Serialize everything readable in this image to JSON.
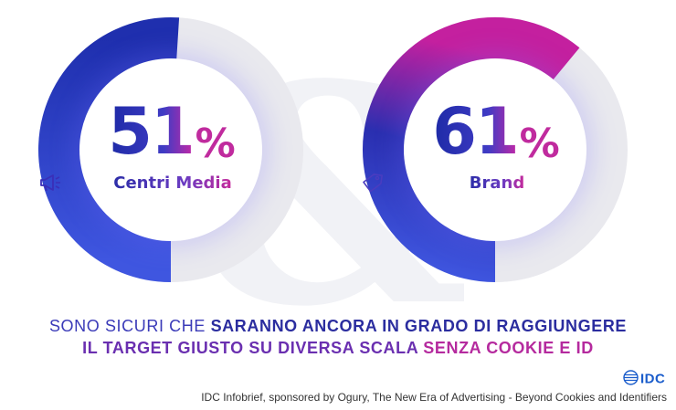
{
  "chart_data": [
    {
      "type": "pie",
      "value": 51,
      "value_label": "51",
      "unit": "%",
      "label": "Centri Media",
      "icon": "megaphone-icon"
    },
    {
      "type": "pie",
      "value": 61,
      "value_label": "61",
      "unit": "%",
      "label": "Brand",
      "icon": "price-tag-icon"
    }
  ],
  "colors": {
    "track": "#e9e9ee",
    "arc_start": "#3a48d8",
    "arc_end": "#c4209f",
    "primary": "#1d2a9c"
  },
  "headline": {
    "line1_plain": "SONO SICURI CHE ",
    "line1_bold": "SARANNO ANCORA IN GRADO DI RAGGIUNGERE",
    "line2_part1": "IL TARGET GIUSTO SU DIVERSA SCALA ",
    "line2_part2": "SENZA COOKIE E ID"
  },
  "logo": {
    "text": "IDC",
    "icon": "idc-globe-icon"
  },
  "footnote": "IDC Infobrief, sponsored by Ogury, The New Era of Advertising - Beyond Cookies and Identifiers"
}
